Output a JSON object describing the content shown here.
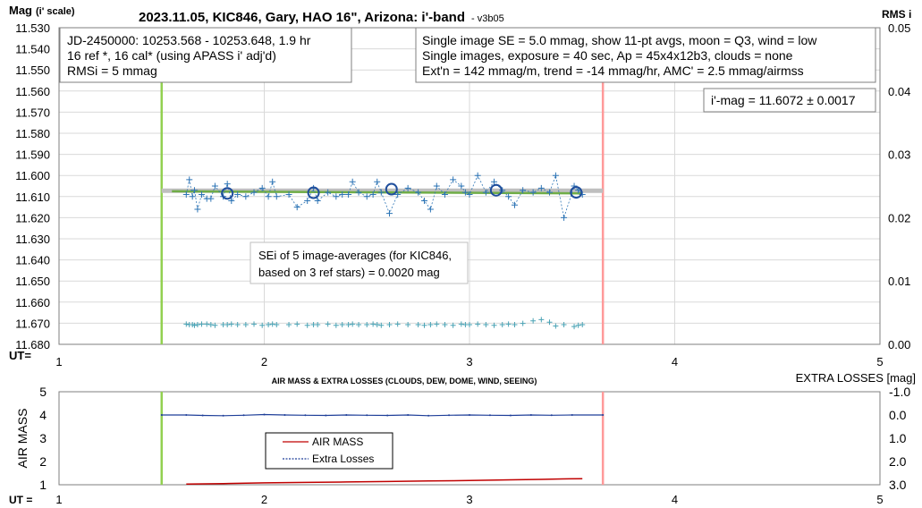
{
  "chart_data": [
    {
      "type": "scatter",
      "title": "2023.11.05, KIC846, Gary, HAO 16\", Arizona: i'-band",
      "title_suffix": "- v3b05",
      "ylabel": "Mag",
      "ylabel_suffix": "(i' scale)",
      "y2label": "RMS i",
      "xlabel": "UT=",
      "xlim": [
        1,
        5
      ],
      "ylim": [
        11.68,
        11.53
      ],
      "y2lim": [
        0,
        0.05
      ],
      "x_ticks": [
        "1",
        "2",
        "3",
        "4",
        "5"
      ],
      "y_ticks": [
        "11.530",
        "11.540",
        "11.550",
        "11.560",
        "11.570",
        "11.580",
        "11.590",
        "11.600",
        "11.610",
        "11.620",
        "11.630",
        "11.640",
        "11.650",
        "11.660",
        "11.670",
        "11.680"
      ],
      "y2_ticks": [
        "0.00",
        "0.01",
        "0.02",
        "0.03",
        "0.04",
        "0.05"
      ],
      "grid": true,
      "vertical_markers": [
        {
          "x": 1.5,
          "color": "#92d050"
        },
        {
          "x": 3.65,
          "color": "#ff9999"
        }
      ],
      "fit_line": {
        "x": [
          1.5,
          3.65
        ],
        "y": [
          11.6072,
          11.6072
        ],
        "color": "#bfbfbf"
      },
      "trend_line": {
        "x": [
          1.55,
          3.55
        ],
        "y": [
          11.6075,
          11.6085
        ],
        "color": "#70ad47"
      },
      "series": [
        {
          "color": "#2e75b6",
          "marker": "+",
          "x": [
            1.62,
            1.635,
            1.65,
            1.66,
            1.675,
            1.695,
            1.72,
            1.74,
            1.76,
            1.8,
            1.82,
            1.84,
            1.87,
            1.91,
            1.95,
            1.99,
            2.02,
            2.04,
            2.06,
            2.12,
            2.16,
            2.21,
            2.24,
            2.26,
            2.31,
            2.35,
            2.38,
            2.41,
            2.43,
            2.46,
            2.5,
            2.53,
            2.55,
            2.57,
            2.61,
            2.65,
            2.7,
            2.75,
            2.78,
            2.81,
            2.84,
            2.88,
            2.92,
            2.96,
            2.98,
            3.0,
            3.04,
            3.08,
            3.12,
            3.16,
            3.19,
            3.22,
            3.26,
            3.31,
            3.35,
            3.39,
            3.42,
            3.46,
            3.51,
            3.53,
            3.55
          ],
          "y": [
            11.609,
            11.602,
            11.61,
            11.607,
            11.616,
            11.609,
            11.611,
            11.611,
            11.605,
            11.61,
            11.604,
            11.612,
            11.609,
            11.61,
            11.608,
            11.606,
            11.61,
            11.603,
            11.61,
            11.609,
            11.615,
            11.612,
            11.606,
            11.612,
            11.608,
            11.61,
            11.609,
            11.609,
            11.603,
            11.608,
            11.61,
            11.609,
            11.603,
            11.608,
            11.618,
            11.609,
            11.606,
            11.608,
            11.612,
            11.616,
            11.605,
            11.609,
            11.602,
            11.605,
            11.608,
            11.609,
            11.6,
            11.608,
            11.603,
            11.607,
            11.61,
            11.614,
            11.607,
            11.608,
            11.606,
            11.608,
            11.6,
            11.62,
            11.605,
            11.607,
            11.609
          ],
          "rms": [
            0.0032,
            0.0031,
            0.0031,
            0.003,
            0.0031,
            0.0032,
            0.0032,
            0.0031,
            0.003,
            0.0031,
            0.0031,
            0.0032,
            0.0031,
            0.0031,
            0.0032,
            0.003,
            0.0031,
            0.0032,
            0.0031,
            0.0031,
            0.0032,
            0.003,
            0.0031,
            0.0031,
            0.0032,
            0.003,
            0.0031,
            0.0031,
            0.0032,
            0.0031,
            0.0031,
            0.0032,
            0.0031,
            0.003,
            0.0031,
            0.0032,
            0.0031,
            0.0031,
            0.003,
            0.0031,
            0.0032,
            0.0031,
            0.003,
            0.0032,
            0.0031,
            0.0031,
            0.0032,
            0.0031,
            0.003,
            0.0031,
            0.0032,
            0.0031,
            0.0033,
            0.0037,
            0.0039,
            0.0035,
            0.0029,
            0.0031,
            0.0028,
            0.003,
            0.0031
          ]
        },
        {
          "color": "#1f4e9c",
          "marker": "open-circle",
          "x": [
            1.82,
            2.24,
            2.62,
            3.13,
            3.52
          ],
          "y": [
            11.6085,
            11.6082,
            11.6065,
            11.607,
            11.608
          ]
        }
      ]
    },
    {
      "type": "line",
      "title": "AIR MASS & EXTRA LOSSES (CLOUDS, DEW, DOME, WIND, SEEING)",
      "ylabel": "AIR MASS",
      "y2label": "EXTRA LOSSES [mag]",
      "xlabel": "UT =",
      "xlim": [
        1,
        5
      ],
      "ylim": [
        1,
        5
      ],
      "y2lim": [
        3.0,
        -1.0
      ],
      "x_ticks": [
        "1",
        "2",
        "3",
        "4",
        "5"
      ],
      "y_ticks": [
        "1",
        "2",
        "3",
        "4",
        "5"
      ],
      "y2_ticks": [
        "-1.0",
        "0.0",
        "1.0",
        "2.0",
        "3.0"
      ],
      "vertical_markers": [
        {
          "x": 1.5,
          "color": "#92d050"
        },
        {
          "x": 3.65,
          "color": "#ff9999"
        }
      ],
      "legend": {
        "position": "center-left",
        "entries": [
          "AIR MASS",
          "Extra Losses"
        ]
      },
      "series": [
        {
          "name": "AIR MASS",
          "color": "#c00000",
          "x": [
            1.62,
            1.8,
            2.0,
            2.2,
            2.4,
            2.6,
            2.8,
            3.0,
            3.2,
            3.35,
            3.45,
            3.55
          ],
          "y": [
            1.03,
            1.05,
            1.08,
            1.1,
            1.12,
            1.14,
            1.16,
            1.18,
            1.21,
            1.23,
            1.25,
            1.26
          ]
        },
        {
          "name": "Extra Losses",
          "color": "#1f3f99",
          "x": [
            1.5,
            1.62,
            1.7,
            1.8,
            1.9,
            2.0,
            2.1,
            2.2,
            2.3,
            2.4,
            2.5,
            2.6,
            2.7,
            2.8,
            2.9,
            3.0,
            3.1,
            3.2,
            3.3,
            3.4,
            3.5,
            3.65
          ],
          "y": [
            0.0,
            0.0,
            0.02,
            0.03,
            0.01,
            -0.02,
            0.0,
            0.01,
            0.02,
            0.0,
            0.01,
            0.02,
            0.0,
            0.03,
            0.01,
            0.0,
            0.01,
            0.02,
            0.0,
            0.01,
            0.0,
            0.0
          ]
        }
      ]
    }
  ],
  "annotations": {
    "box_left": [
      "JD-2450000: 10253.568 - 10253.648, 1.9  hr",
      "16 ref *, 16 cal* (using APASS i' adj'd)",
      "RMSi = 5 mmag"
    ],
    "box_right": [
      "Single image SE = 5.0 mmag, show 11-pt avgs, moon = Q3, wind = low",
      "Single images, exposure = 40 sec, Ap = 45x4x12b3, clouds = none",
      "Ext'n = 142 mmag/m, trend = -14 mmag/hr, AMC' = 2.5 mmag/airmss"
    ],
    "imag_box": "i'-mag = 11.6072 ± 0.0017",
    "sei_box": [
      "SEi of 5 image-averages (for KIC846,",
      "based on 3 ref stars) = 0.0020 mag"
    ]
  }
}
